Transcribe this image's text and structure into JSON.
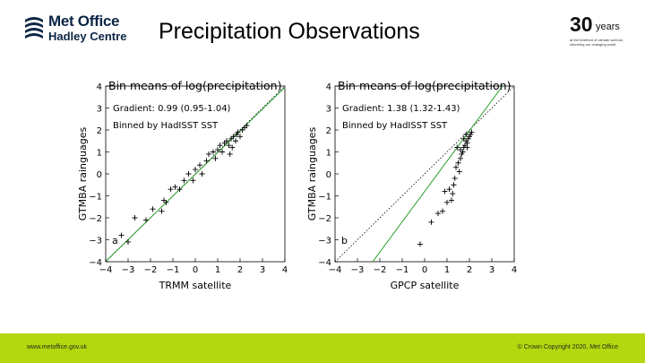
{
  "header": {
    "logo_line1": "Met Office",
    "logo_line2": "Hadley Centre",
    "title": "Precipitation Observations",
    "anniversary_number": "30",
    "anniversary_word": "years",
    "anniversary_tagline": "at the forefront of climate science, informing our changing world"
  },
  "footer": {
    "website": "www.metoffice.gov.uk",
    "copyright": "© Crown Copyright 2020, Met Office"
  },
  "colors": {
    "fit_line": "#2ca02c",
    "one_to_one": "#000000",
    "footer_bar": "#b5d70f"
  },
  "icons": [
    "met-office-logo-icon"
  ],
  "chart_data": [
    {
      "type": "scatter",
      "panel_label": "a",
      "title": "Bin means of log(precipitation)",
      "annotation_line1": "Gradient: 0.99 (0.95-1.04)",
      "annotation_line2": "Binned by HadISST SST",
      "xlabel": "TRMM satellite",
      "ylabel": "GTMBA rainguages",
      "xlim": [
        -4,
        4
      ],
      "ylim": [
        -4,
        4
      ],
      "xticks": [
        "−4",
        "−3",
        "−2",
        "−1",
        "0",
        "1",
        "2",
        "3",
        "4"
      ],
      "yticks": [
        "4",
        "3",
        "2",
        "1",
        "0",
        "−1",
        "−2",
        "−3",
        "−4"
      ],
      "grid": false,
      "fit": {
        "slope": 0.99,
        "intercept": -0.02
      },
      "points": [
        [
          -3.3,
          -2.8
        ],
        [
          -3.0,
          -3.1
        ],
        [
          -2.7,
          -2.0
        ],
        [
          -2.2,
          -2.1
        ],
        [
          -1.9,
          -1.6
        ],
        [
          -1.5,
          -1.7
        ],
        [
          -1.4,
          -1.2
        ],
        [
          -1.3,
          -1.3
        ],
        [
          -1.1,
          -0.7
        ],
        [
          -0.9,
          -0.6
        ],
        [
          -0.7,
          -0.7
        ],
        [
          -0.5,
          -0.3
        ],
        [
          -0.3,
          0.0
        ],
        [
          -0.1,
          -0.3
        ],
        [
          0.0,
          0.2
        ],
        [
          0.2,
          0.4
        ],
        [
          0.3,
          0.0
        ],
        [
          0.5,
          0.6
        ],
        [
          0.6,
          0.9
        ],
        [
          0.8,
          1.0
        ],
        [
          0.9,
          0.7
        ],
        [
          1.0,
          1.1
        ],
        [
          1.1,
          1.3
        ],
        [
          1.2,
          1.0
        ],
        [
          1.3,
          1.4
        ],
        [
          1.4,
          1.5
        ],
        [
          1.5,
          1.3
        ],
        [
          1.6,
          1.6
        ],
        [
          1.7,
          1.7
        ],
        [
          1.8,
          1.5
        ],
        [
          1.85,
          1.8
        ],
        [
          1.9,
          1.9
        ],
        [
          2.0,
          1.7
        ],
        [
          2.1,
          2.0
        ],
        [
          2.2,
          2.1
        ],
        [
          2.3,
          2.2
        ],
        [
          1.55,
          0.9
        ],
        [
          1.65,
          1.2
        ]
      ]
    },
    {
      "type": "scatter",
      "panel_label": "b",
      "title": "Bin means of log(precipitation)",
      "annotation_line1": "Gradient: 1.38 (1.32-1.43)",
      "annotation_line2": "Binned by HadISST SST",
      "xlabel": "GPCP satellite",
      "ylabel": "GTMBA rainguages",
      "xlim": [
        -4,
        4
      ],
      "ylim": [
        -4,
        4
      ],
      "xticks": [
        "−4",
        "−3",
        "−2",
        "−1",
        "0",
        "1",
        "2",
        "3",
        "4"
      ],
      "yticks": [
        "4",
        "3",
        "2",
        "1",
        "0",
        "−1",
        "−2",
        "−3",
        "−4"
      ],
      "grid": false,
      "fit": {
        "slope": 1.38,
        "intercept": -0.8
      },
      "points": [
        [
          -0.2,
          -3.2
        ],
        [
          0.3,
          -2.2
        ],
        [
          0.6,
          -1.8
        ],
        [
          0.8,
          -1.7
        ],
        [
          1.0,
          -1.3
        ],
        [
          1.1,
          -0.7
        ],
        [
          1.2,
          -1.2
        ],
        [
          1.3,
          -0.5
        ],
        [
          1.35,
          -0.2
        ],
        [
          1.4,
          0.3
        ],
        [
          1.5,
          0.5
        ],
        [
          1.55,
          0.1
        ],
        [
          1.6,
          0.7
        ],
        [
          1.65,
          0.9
        ],
        [
          1.7,
          1.0
        ],
        [
          1.75,
          1.2
        ],
        [
          1.8,
          1.3
        ],
        [
          1.85,
          1.5
        ],
        [
          1.9,
          1.4
        ],
        [
          1.95,
          1.6
        ],
        [
          2.0,
          1.7
        ],
        [
          2.05,
          1.8
        ],
        [
          2.1,
          1.9
        ],
        [
          1.75,
          1.6
        ],
        [
          1.85,
          1.8
        ],
        [
          1.6,
          1.1
        ],
        [
          1.45,
          1.2
        ],
        [
          1.9,
          1.2
        ],
        [
          0.9,
          -0.8
        ],
        [
          1.25,
          -0.9
        ]
      ]
    }
  ]
}
